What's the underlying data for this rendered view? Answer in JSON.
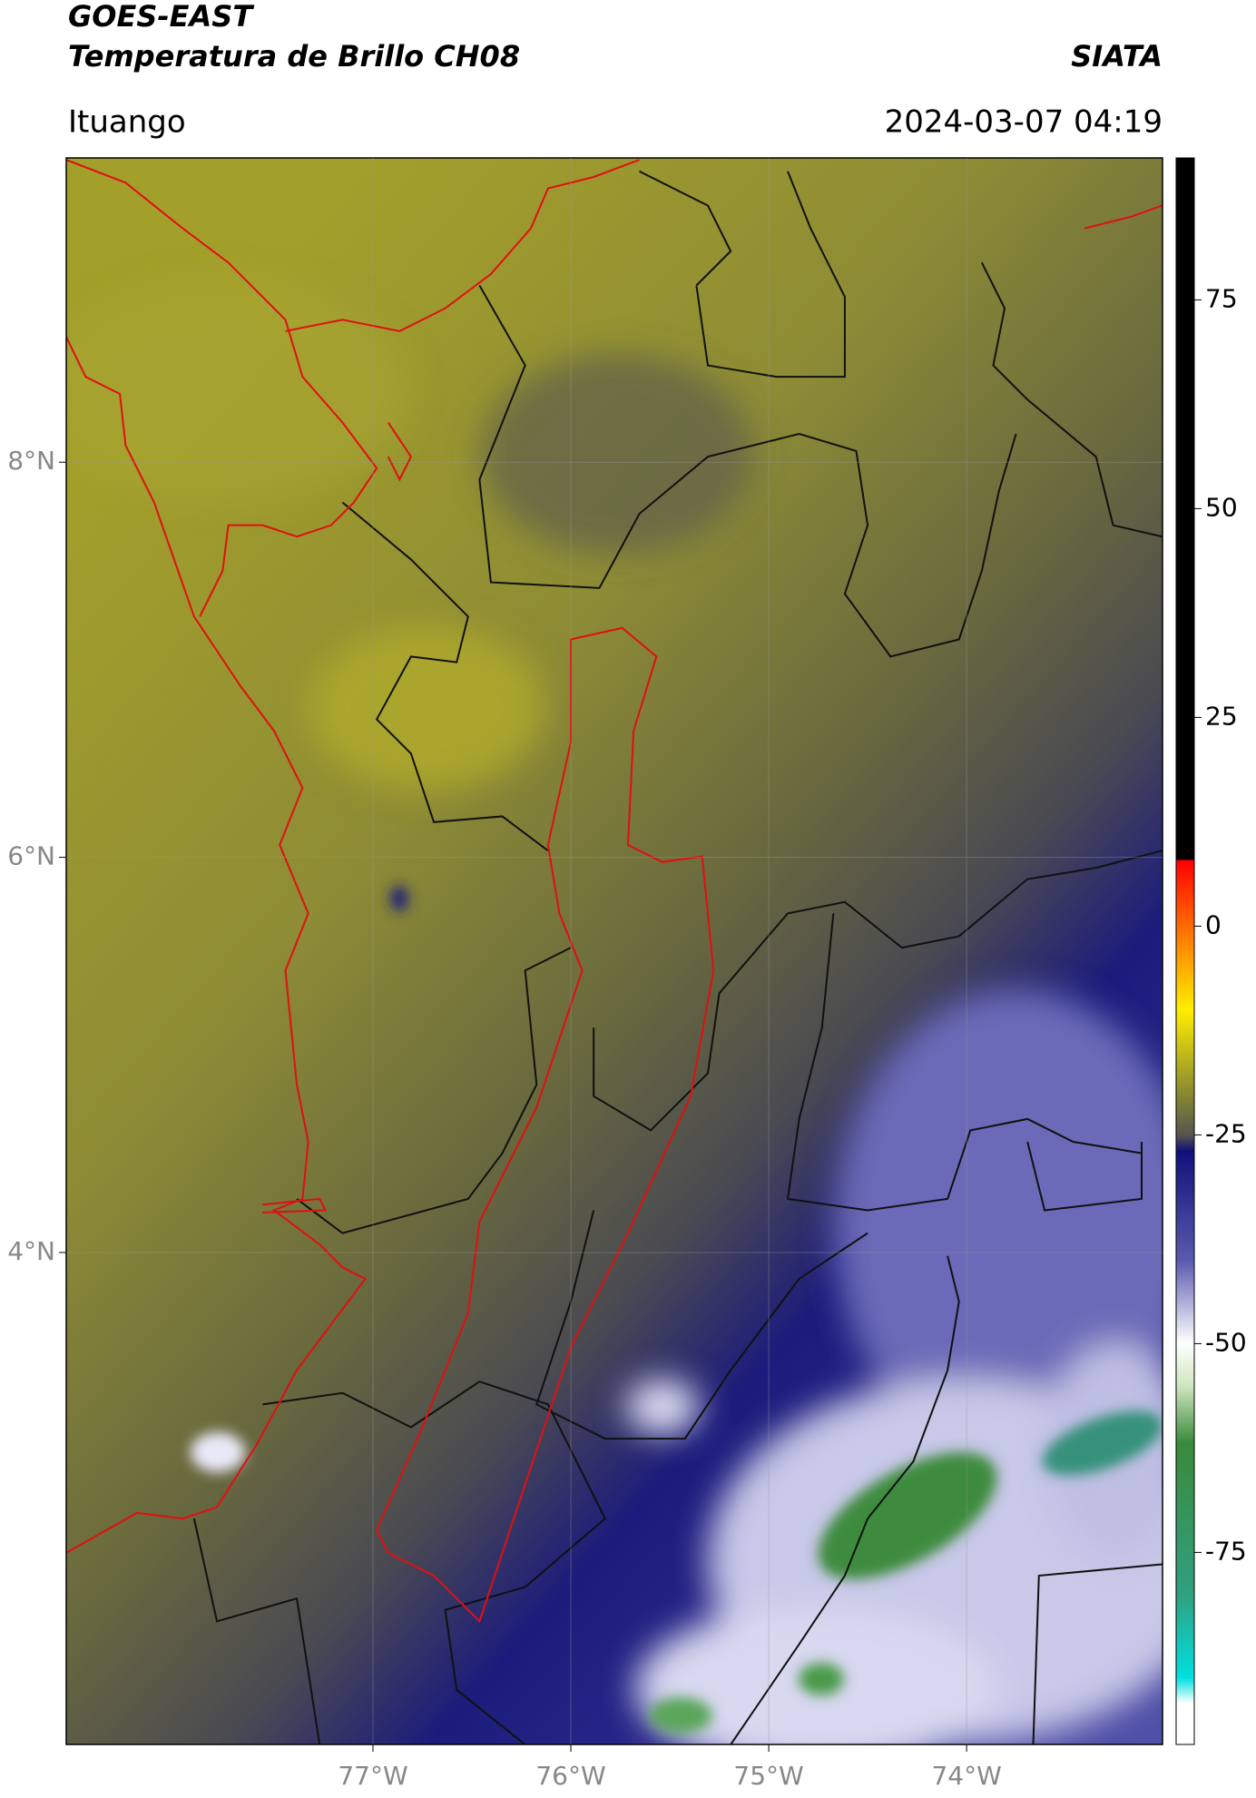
{
  "header": {
    "satellite": "GOES-EAST",
    "product": "Temperatura de Brillo CH08",
    "brand": "SIATA",
    "region": "Ituango",
    "timestamp": "2024-03-07 04:19"
  },
  "map": {
    "xlim": [
      -78.55,
      -73.01
    ],
    "ylim": [
      1.51,
      9.54
    ],
    "xticks": [
      {
        "value": -77,
        "label": "77°W"
      },
      {
        "value": -76,
        "label": "76°W"
      },
      {
        "value": -75,
        "label": "75°W"
      },
      {
        "value": -74,
        "label": "74°W"
      }
    ],
    "yticks": [
      {
        "value": 8,
        "label": "8°N"
      },
      {
        "value": 6,
        "label": "6°N"
      },
      {
        "value": 4,
        "label": "4°N"
      }
    ],
    "grid": true
  },
  "colorbar": {
    "lim": [
      -98,
      92
    ],
    "ticks": [
      75,
      50,
      25,
      0,
      -25,
      -50,
      -75
    ]
  }
}
